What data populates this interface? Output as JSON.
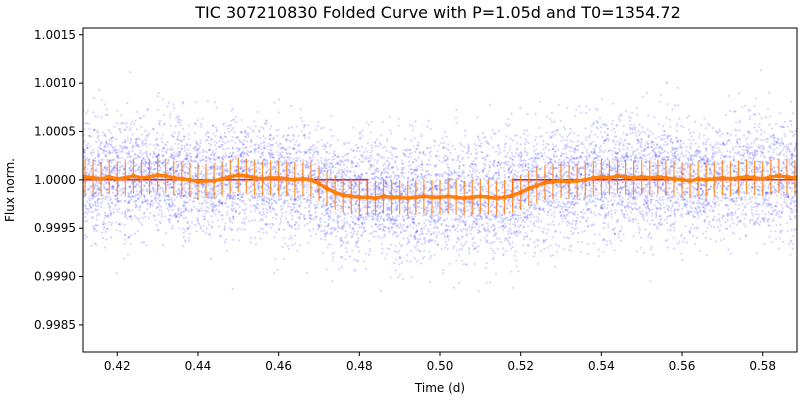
{
  "chart_data": {
    "type": "scatter",
    "title": "TIC 307210830 Folded Curve with P=1.05d and T0=1354.72",
    "xlabel": "Time (d)",
    "ylabel": "Flux norm.",
    "xlim": [
      0.4115,
      0.5885
    ],
    "ylim": [
      0.99822,
      1.00157
    ],
    "x_ticks": [
      0.42,
      0.44,
      0.46,
      0.48,
      0.5,
      0.52,
      0.54,
      0.56,
      0.58
    ],
    "x_tick_labels": [
      "0.42",
      "0.44",
      "0.46",
      "0.48",
      "0.50",
      "0.52",
      "0.54",
      "0.56",
      "0.58"
    ],
    "y_ticks": [
      0.9985,
      0.999,
      0.9995,
      1.0,
      1.0005,
      1.001,
      1.0015
    ],
    "y_tick_labels": [
      "0.9985",
      "0.9990",
      "0.9995",
      "1.0000",
      "1.0005",
      "1.0010",
      "1.0015"
    ],
    "grid": false,
    "series": [
      {
        "kind": "scatter",
        "color": "#0000ff",
        "x_range": [
          0.4115,
          0.5885
        ],
        "noise_sigma": 0.0003
      },
      {
        "kind": "step_model",
        "color": "#d62728",
        "x": [
          0.4115,
          0.47,
          0.47,
          0.482,
          0.482,
          0.518,
          0.518,
          0.53,
          0.53,
          0.5885
        ],
        "y": [
          1.0,
          1.0,
          1.0,
          1.0,
          0.99982,
          0.99982,
          1.0,
          1.0,
          1.0,
          1.0
        ]
      },
      {
        "kind": "binned_errorbar",
        "color": "#ff7f0e",
        "x": [
          0.412,
          0.414,
          0.416,
          0.418,
          0.42,
          0.422,
          0.424,
          0.426,
          0.428,
          0.43,
          0.432,
          0.434,
          0.436,
          0.438,
          0.44,
          0.442,
          0.444,
          0.446,
          0.448,
          0.45,
          0.452,
          0.454,
          0.456,
          0.458,
          0.46,
          0.462,
          0.464,
          0.466,
          0.468,
          0.47,
          0.472,
          0.474,
          0.476,
          0.478,
          0.48,
          0.482,
          0.484,
          0.486,
          0.488,
          0.49,
          0.492,
          0.494,
          0.496,
          0.498,
          0.5,
          0.502,
          0.504,
          0.506,
          0.508,
          0.51,
          0.512,
          0.514,
          0.516,
          0.518,
          0.52,
          0.522,
          0.524,
          0.526,
          0.528,
          0.53,
          0.532,
          0.534,
          0.536,
          0.538,
          0.54,
          0.542,
          0.544,
          0.546,
          0.548,
          0.55,
          0.552,
          0.554,
          0.556,
          0.558,
          0.56,
          0.562,
          0.564,
          0.566,
          0.568,
          0.57,
          0.572,
          0.574,
          0.576,
          0.578,
          0.58,
          0.582,
          0.584,
          0.586,
          0.588
        ],
        "y": [
          1.00003,
          1.00002,
          1.00001,
          1.00003,
          1.00001,
          1.00002,
          1.00004,
          1.00002,
          1.00003,
          1.00005,
          1.00004,
          1.00002,
          1.00001,
          1.0,
          0.99998,
          0.99999,
          0.99999,
          1.00001,
          1.00003,
          1.00005,
          1.00004,
          1.00002,
          1.00001,
          1.00002,
          1.00002,
          1.00001,
          1.0,
          1.00001,
          1.0,
          0.99996,
          0.99991,
          0.99987,
          0.99984,
          0.99983,
          0.99982,
          0.99982,
          0.99981,
          0.99983,
          0.99982,
          0.99982,
          0.99981,
          0.99982,
          0.99983,
          0.99982,
          0.99982,
          0.99983,
          0.99982,
          0.99981,
          0.99982,
          0.99983,
          0.99982,
          0.99981,
          0.99982,
          0.99984,
          0.99987,
          0.99991,
          0.99994,
          0.99997,
          0.99998,
          0.99999,
          0.99998,
          0.99999,
          1.0,
          1.00002,
          1.00003,
          1.00002,
          1.00004,
          1.00003,
          1.00002,
          1.00003,
          1.00002,
          1.00003,
          1.00002,
          1.00001,
          1.0,
          0.99999,
          1.00001,
          1.0,
          1.00001,
          1.00002,
          1.00001,
          1.00002,
          1.00003,
          1.00002,
          1.00001,
          1.00003,
          1.00004,
          1.00003,
          1.00002
        ],
        "yerr": 0.00018
      }
    ]
  }
}
